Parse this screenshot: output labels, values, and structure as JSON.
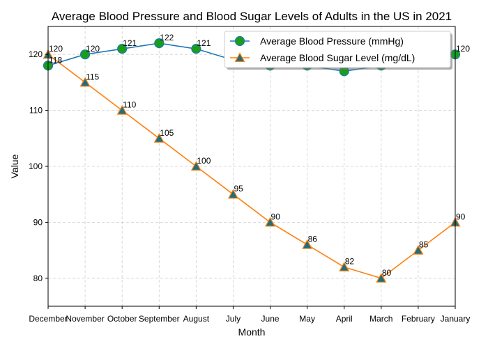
{
  "chart_data": {
    "type": "line",
    "title": "Average Blood Pressure and Blood Sugar Levels of Adults in the US in 2021",
    "xlabel": "Month",
    "ylabel": "Value",
    "categories": [
      "December",
      "November",
      "October",
      "September",
      "August",
      "July",
      "June",
      "May",
      "April",
      "March",
      "February",
      "January"
    ],
    "ylim": [
      75,
      125
    ],
    "yticks": [
      80,
      90,
      100,
      110,
      120
    ],
    "grid": true,
    "legend_position": "top-right",
    "series": [
      {
        "name": "Average Blood Pressure (mmHg)",
        "marker": "circle",
        "line_color": "#1f77b4",
        "marker_color": "#1a9e1a",
        "values": [
          118,
          120,
          121,
          122,
          121,
          119,
          118,
          118,
          117,
          118,
          119,
          120
        ],
        "labels": [
          "118",
          "120",
          "121",
          "122",
          "121",
          "",
          "",
          "",
          "",
          "",
          "",
          "120"
        ]
      },
      {
        "name": "Average Blood Sugar Level (mg/dL)",
        "marker": "triangle",
        "line_color": "#ff7f0e",
        "marker_color": "#1f6f7a",
        "values": [
          120,
          115,
          110,
          105,
          100,
          95,
          90,
          86,
          82,
          80,
          85,
          90
        ],
        "labels": [
          "120",
          "115",
          "110",
          "105",
          "100",
          "95",
          "90",
          "86",
          "82",
          "80",
          "85",
          "90"
        ]
      }
    ]
  }
}
